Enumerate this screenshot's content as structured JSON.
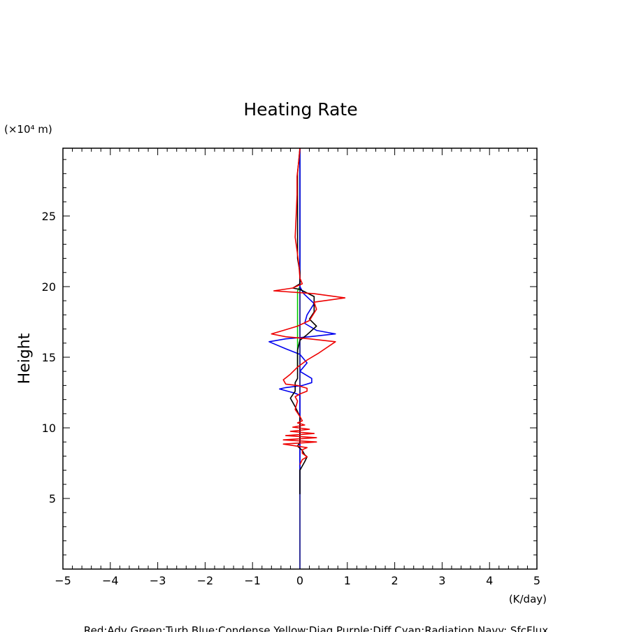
{
  "chart_data": {
    "type": "line",
    "title": "Heating Rate",
    "xlabel": "(K/day)",
    "ylabel": "Height",
    "y_unit": "(×10⁴ m)",
    "xlim": [
      -5,
      5
    ],
    "ylim": [
      0,
      29.8
    ],
    "xticks": [
      "−5",
      "−4",
      "−3",
      "−2",
      "−1",
      "0",
      "1",
      "2",
      "3",
      "4",
      "5"
    ],
    "yticks": [
      "5",
      "10",
      "15",
      "20",
      "25"
    ],
    "grid": false,
    "legend_text": "Red:Adv  Green:Turb  Blue:Condense  Yellow:Diag  Purple:Diff  Cyan:Radiation  Navy: SfcFlux",
    "series": [
      {
        "name": "Green:Turb",
        "color": "#00cc00",
        "points": [
          [
            -0.05,
            14.2
          ],
          [
            -0.05,
            16.0
          ],
          [
            -0.05,
            17.5
          ],
          [
            -0.05,
            19.7
          ],
          [
            0.0,
            20.0
          ],
          [
            0.0,
            29.8
          ]
        ]
      },
      {
        "name": "Navy: SfcFlux",
        "color": "#000080",
        "points": [
          [
            0.0,
            0.0
          ],
          [
            0.0,
            29.8
          ]
        ]
      },
      {
        "name": "Blue:Condense",
        "color": "#0000ee",
        "points": [
          [
            0.0,
            5.3
          ],
          [
            0.0,
            12.3
          ],
          [
            -0.1,
            12.45
          ],
          [
            -0.43,
            12.75
          ],
          [
            -0.3,
            12.85
          ],
          [
            0.05,
            13.0
          ],
          [
            0.25,
            13.2
          ],
          [
            0.25,
            13.5
          ],
          [
            0.0,
            14.0
          ],
          [
            0.15,
            14.6
          ],
          [
            0.0,
            15.2
          ],
          [
            -0.3,
            15.6
          ],
          [
            -0.65,
            16.1
          ],
          [
            -0.3,
            16.3
          ],
          [
            0.2,
            16.45
          ],
          [
            0.75,
            16.65
          ],
          [
            0.35,
            16.9
          ],
          [
            0.1,
            17.4
          ],
          [
            0.15,
            18.0
          ],
          [
            0.3,
            18.8
          ],
          [
            0.08,
            19.5
          ],
          [
            0.0,
            20.0
          ],
          [
            0.0,
            29.8
          ]
        ]
      },
      {
        "name": "Black",
        "color": "#000000",
        "points": [
          [
            0.0,
            5.3
          ],
          [
            0.0,
            7.0
          ],
          [
            0.1,
            7.6
          ],
          [
            0.15,
            7.95
          ],
          [
            0.1,
            8.1
          ],
          [
            0.05,
            8.4
          ],
          [
            -0.05,
            8.7
          ],
          [
            0.0,
            9.0
          ],
          [
            0.0,
            10.8
          ],
          [
            -0.1,
            11.5
          ],
          [
            -0.2,
            12.1
          ],
          [
            -0.1,
            12.6
          ],
          [
            -0.1,
            13.2
          ],
          [
            -0.05,
            13.5
          ],
          [
            -0.05,
            15.5
          ],
          [
            0.0,
            16.2
          ],
          [
            0.15,
            16.6
          ],
          [
            0.35,
            17.2
          ],
          [
            0.2,
            17.7
          ],
          [
            0.3,
            18.2
          ],
          [
            0.3,
            19.3
          ],
          [
            0.0,
            19.8
          ],
          [
            -0.15,
            19.9
          ],
          [
            0.0,
            20.2
          ],
          [
            0.0,
            21.0
          ],
          [
            -0.05,
            22.0
          ],
          [
            -0.05,
            28.0
          ],
          [
            0.0,
            29.8
          ]
        ]
      },
      {
        "name": "Red:Adv",
        "color": "#ee0000",
        "points": [
          [
            0.0,
            7.4
          ],
          [
            0.05,
            7.75
          ],
          [
            0.15,
            7.95
          ],
          [
            0.05,
            8.2
          ],
          [
            0.05,
            8.45
          ],
          [
            0.15,
            8.6
          ],
          [
            -0.35,
            8.85
          ],
          [
            0.35,
            9.0
          ],
          [
            -0.35,
            9.15
          ],
          [
            0.35,
            9.3
          ],
          [
            -0.3,
            9.45
          ],
          [
            0.3,
            9.6
          ],
          [
            -0.2,
            9.75
          ],
          [
            0.2,
            9.9
          ],
          [
            -0.15,
            10.05
          ],
          [
            0.1,
            10.2
          ],
          [
            -0.05,
            10.35
          ],
          [
            0.05,
            10.5
          ],
          [
            0.0,
            10.8
          ],
          [
            -0.1,
            11.3
          ],
          [
            -0.05,
            11.9
          ],
          [
            -0.1,
            12.2
          ],
          [
            0.0,
            12.4
          ],
          [
            0.15,
            12.6
          ],
          [
            0.15,
            12.8
          ],
          [
            -0.05,
            13.0
          ],
          [
            -0.3,
            13.1
          ],
          [
            -0.35,
            13.4
          ],
          [
            -0.2,
            13.8
          ],
          [
            -0.05,
            14.3
          ],
          [
            0.15,
            14.8
          ],
          [
            0.4,
            15.3
          ],
          [
            0.75,
            16.1
          ],
          [
            0.2,
            16.3
          ],
          [
            -0.3,
            16.45
          ],
          [
            -0.6,
            16.65
          ],
          [
            -0.35,
            16.9
          ],
          [
            -0.05,
            17.2
          ],
          [
            0.2,
            17.6
          ],
          [
            0.35,
            18.4
          ],
          [
            0.3,
            18.9
          ],
          [
            0.95,
            19.2
          ],
          [
            0.3,
            19.5
          ],
          [
            -0.55,
            19.7
          ],
          [
            -0.15,
            19.9
          ],
          [
            0.05,
            20.2
          ],
          [
            0.0,
            20.6
          ],
          [
            -0.02,
            21.5
          ],
          [
            -0.05,
            22.3
          ],
          [
            -0.1,
            23.5
          ],
          [
            -0.08,
            25.0
          ],
          [
            -0.06,
            26.5
          ],
          [
            -0.06,
            27.8
          ],
          [
            -0.02,
            29.0
          ],
          [
            0.0,
            29.8
          ]
        ]
      }
    ]
  }
}
